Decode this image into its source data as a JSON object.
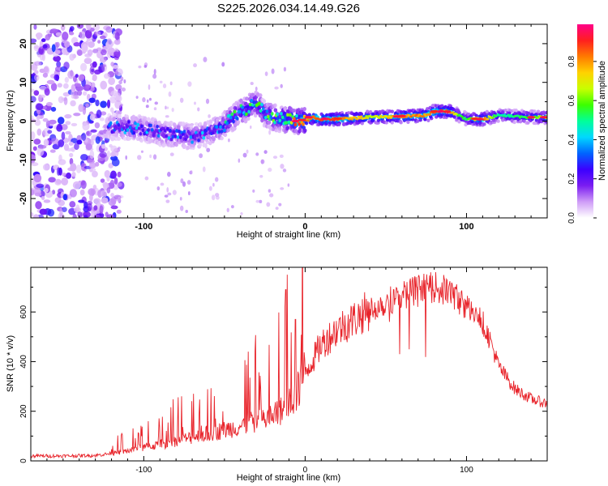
{
  "title": "S225.2026.034.14.49.G26",
  "colors": {
    "snr_line": "#e8232a",
    "axis": "#000000",
    "colorbar_stops": [
      "#ffffff",
      "#cf9cf7",
      "#7a1df1",
      "#3b00ff",
      "#0064ff",
      "#00d8ff",
      "#00ff9a",
      "#3cff00",
      "#c8ff00",
      "#ffd200",
      "#ff7a00",
      "#ff1f1f",
      "#ff0088"
    ]
  },
  "chart_data": [
    {
      "type": "heatmap",
      "name": "spectrogram",
      "xlabel": "Height of straight line (km)",
      "ylabel": "Frequency (Hz)",
      "xlim": [
        -170,
        150
      ],
      "ylim": [
        -25,
        25
      ],
      "x_ticks": [
        -100,
        0,
        100
      ],
      "y_ticks": [
        -20,
        -10,
        0,
        10,
        20
      ],
      "colorbar": {
        "label": "Normalized spectral amplitude",
        "range": [
          0,
          1
        ],
        "ticks": [
          0.0,
          0.2,
          0.4,
          0.6,
          0.8
        ]
      },
      "ridge": {
        "description": "dominant frequency vs height",
        "x": [
          -120,
          -110,
          -100,
          -90,
          -80,
          -70,
          -60,
          -50,
          -40,
          -30,
          -25,
          -20,
          -15,
          -10,
          -5,
          0,
          5,
          10,
          20,
          40,
          60,
          75,
          80,
          90,
          95,
          100,
          110,
          120,
          140,
          150
        ],
        "y": [
          -1.5,
          -1.5,
          -2,
          -3,
          -3.5,
          -4,
          -3,
          -1,
          2.5,
          4.5,
          2,
          1,
          0.5,
          0.5,
          0,
          0,
          1,
          0.5,
          0.5,
          1,
          1.2,
          1.5,
          2.5,
          2.5,
          1.5,
          0.5,
          0.5,
          1.5,
          1,
          1
        ],
        "amp": [
          0.3,
          0.35,
          0.35,
          0.35,
          0.35,
          0.35,
          0.35,
          0.45,
          0.5,
          0.5,
          0.5,
          0.55,
          0.6,
          0.7,
          0.8,
          0.85,
          0.9,
          0.92,
          0.92,
          0.7,
          0.85,
          0.85,
          0.9,
          0.85,
          0.6,
          0.55,
          0.9,
          0.5,
          0.6,
          0.7
        ]
      },
      "noise_region": {
        "x_range": [
          -170,
          -120
        ],
        "y_range": [
          -25,
          25
        ]
      }
    },
    {
      "type": "line",
      "name": "snr",
      "xlabel": "Height of straight line (km)",
      "ylabel": "SNR (10 * v/v)",
      "xlim": [
        -170,
        150
      ],
      "ylim": [
        0,
        780
      ],
      "x_ticks": [
        -100,
        0,
        100
      ],
      "y_ticks": [
        0,
        200,
        400,
        600
      ],
      "series": [
        {
          "name": "SNR",
          "x": [
            -170,
            -150,
            -130,
            -120,
            -110,
            -100,
            -90,
            -80,
            -70,
            -60,
            -50,
            -40,
            -30,
            -20,
            -15,
            -10,
            -5,
            0,
            5,
            10,
            20,
            30,
            40,
            50,
            60,
            70,
            80,
            85,
            90,
            95,
            100,
            105,
            110,
            115,
            120,
            130,
            140,
            150
          ],
          "values": [
            20,
            20,
            22,
            30,
            40,
            55,
            65,
            80,
            95,
            110,
            125,
            140,
            160,
            180,
            200,
            230,
            270,
            360,
            410,
            470,
            530,
            570,
            610,
            640,
            670,
            690,
            700,
            690,
            680,
            650,
            620,
            590,
            560,
            480,
            380,
            290,
            250,
            230
          ]
        }
      ]
    }
  ]
}
